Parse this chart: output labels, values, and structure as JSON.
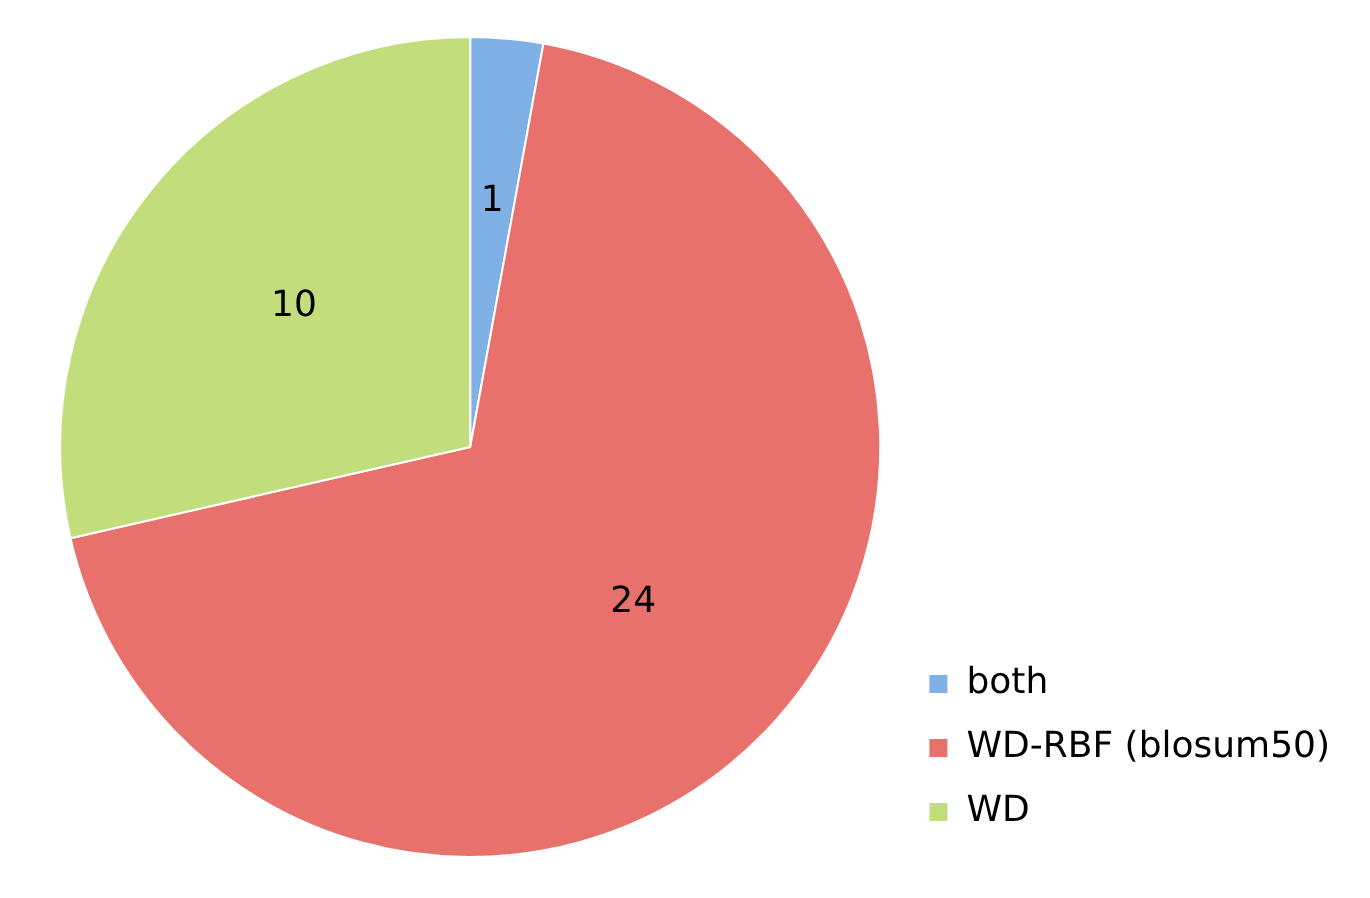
{
  "chart_data": {
    "type": "pie",
    "categories": [
      "both",
      "WD-RBF (blosum50)",
      "WD"
    ],
    "values": [
      1,
      24,
      10
    ],
    "colors": [
      "#7fb0e6",
      "#e8726b",
      "#c2de7c"
    ],
    "data_labels": true,
    "legend": "bottom right"
  }
}
